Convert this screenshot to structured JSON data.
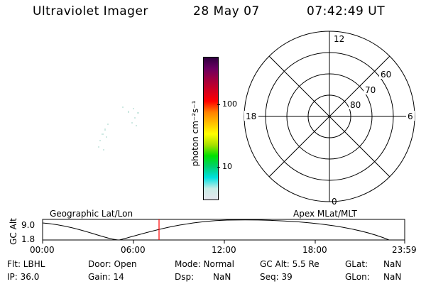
{
  "header": {
    "title": "Ultraviolet Imager",
    "date": "28 May 07",
    "time": "07:42:49 UT"
  },
  "colorbar": {
    "axis_label": "photon cm⁻²s⁻¹",
    "ticks": [
      "100",
      "10"
    ],
    "colors": [
      "#e6e6ee",
      "#c8ece6",
      "#00e0e0",
      "#00d070",
      "#00e000",
      "#a8e000",
      "#ffff00",
      "#ffc000",
      "#ff8000",
      "#ff0000",
      "#d00020",
      "#a00040",
      "#6a0060",
      "#300040"
    ]
  },
  "polar_plot": {
    "mlt_labels": {
      "top": "12",
      "left": "18",
      "right": "6",
      "bottom": "0"
    },
    "lat_labels": [
      "60",
      "70",
      "80"
    ]
  },
  "orbit_panel": {
    "left_title": "Geographic Lat/Lon",
    "right_title": "Apex MLat/MLT",
    "y_axis_label": "GC Alt",
    "y_ticks": [
      "9.0",
      "1.8"
    ],
    "x_ticks": [
      "00:00",
      "06:00",
      "12:00",
      "18:00",
      "23:59"
    ],
    "marker_color": "#ff0000"
  },
  "status": {
    "col1": {
      "filter": "Flt: LBHL",
      "ip": "IP: 36.0"
    },
    "col2": {
      "door": "Door: Open",
      "gain": "Gain: 14"
    },
    "col3": {
      "mode": "Mode: Normal",
      "dsp_label": "Dsp:",
      "dsp_value": "NaN"
    },
    "col4": {
      "gc_alt": "GC Alt: 5.5 Re",
      "seq": "Seq: 39"
    },
    "col5": {
      "glat_label": "GLat:",
      "glat_value": "NaN",
      "glon_label": "GLon:",
      "glon_value": "NaN"
    }
  }
}
